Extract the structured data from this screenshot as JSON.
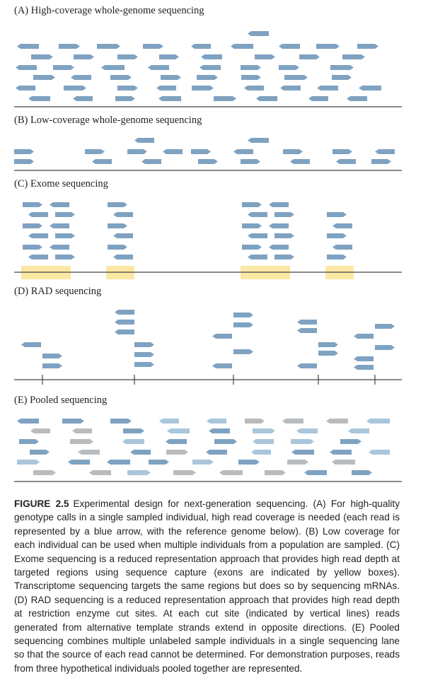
{
  "colors": {
    "read_blue": "#7fa2c1",
    "read_light": "#a9c6db",
    "read_gray": "#b9bcbe",
    "exon_yellow": "#fbe8a4",
    "baseline": "#444444"
  },
  "panels": {
    "a": {
      "label": "(A) High-coverage whole-genome sequencing"
    },
    "b": {
      "label": "(B) Low-coverage whole-genome sequencing"
    },
    "c": {
      "label": "(C) Exome sequencing"
    },
    "d": {
      "label": "(D) RAD sequencing"
    },
    "e": {
      "label": "(E) Pooled sequencing"
    }
  },
  "caption": {
    "title": "FIGURE 2.5",
    "text": "Experimental design for next-generation sequencing. (A) For high-quality genotype calls in a single sampled individual, high read coverage is needed (each read is represented by a blue arrow, with the reference genome below). (B) Low coverage for each individual can be used when multiple individuals from a population are sampled. (C) Exome sequencing is a reduced representation approach that provides high read depth at targeted regions using sequence capture (exons are indicated by yellow boxes). Transcriptome sequencing targets the same regions but does so by sequencing mRNAs. (D) RAD sequencing is a reduced representation approach that provides high read depth at restriction enzyme cut sites. At each cut site (indicated by vertical lines) reads generated from alternative template strands extend in opposite directions. (E) Pooled sequencing combines multiple unlabeled sample individuals in a single sequencing lane so that the source of each read cannot be determined. For demonstration purposes, reads from three hypothetical individuals pooled together are represented."
  }
}
